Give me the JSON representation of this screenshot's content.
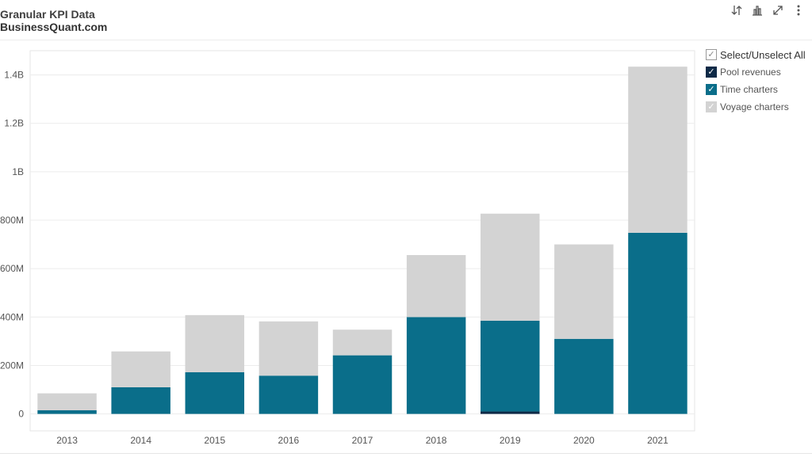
{
  "header": {
    "title": "Granular KPI Data",
    "subtitle": "BusinessQuant.com"
  },
  "toolbar": {
    "icons": [
      "sort-icon",
      "bar-chart-icon",
      "expand-icon",
      "more-icon"
    ]
  },
  "legend": {
    "select_all_label": "Select/Unselect All",
    "items": [
      {
        "label": "Pool revenues",
        "color": "#0e2a47",
        "checked": true
      },
      {
        "label": "Time charters",
        "color": "#0a6e8a",
        "checked": true
      },
      {
        "label": "Voyage charters",
        "color": "#d3d3d3",
        "checked": true
      }
    ]
  },
  "chart_data": {
    "type": "bar",
    "stacked": true,
    "categories": [
      "2013",
      "2014",
      "2015",
      "2016",
      "2017",
      "2018",
      "2019",
      "2020",
      "2021"
    ],
    "series": [
      {
        "name": "Pool revenues",
        "color": "#0e2a47",
        "values": [
          0,
          0,
          0,
          0,
          0,
          0,
          10000000,
          0,
          0
        ]
      },
      {
        "name": "Time charters",
        "color": "#0a6e8a",
        "values": [
          15000000,
          110000000,
          172000000,
          158000000,
          242000000,
          400000000,
          375000000,
          310000000,
          748000000
        ]
      },
      {
        "name": "Voyage charters",
        "color": "#d3d3d3",
        "values": [
          70000000,
          148000000,
          236000000,
          224000000,
          106000000,
          256000000,
          442000000,
          390000000,
          686000000
        ]
      }
    ],
    "ylim": [
      -70000000,
      1500000000
    ],
    "yticks": [
      0,
      200000000,
      400000000,
      600000000,
      800000000,
      1000000000,
      1200000000,
      1400000000
    ],
    "ytick_labels": [
      "0",
      "200M",
      "400M",
      "600M",
      "800M",
      "1B",
      "1.2B",
      "1.4B"
    ],
    "grid": true,
    "legend_position": "right",
    "xlabel": "",
    "ylabel": ""
  }
}
